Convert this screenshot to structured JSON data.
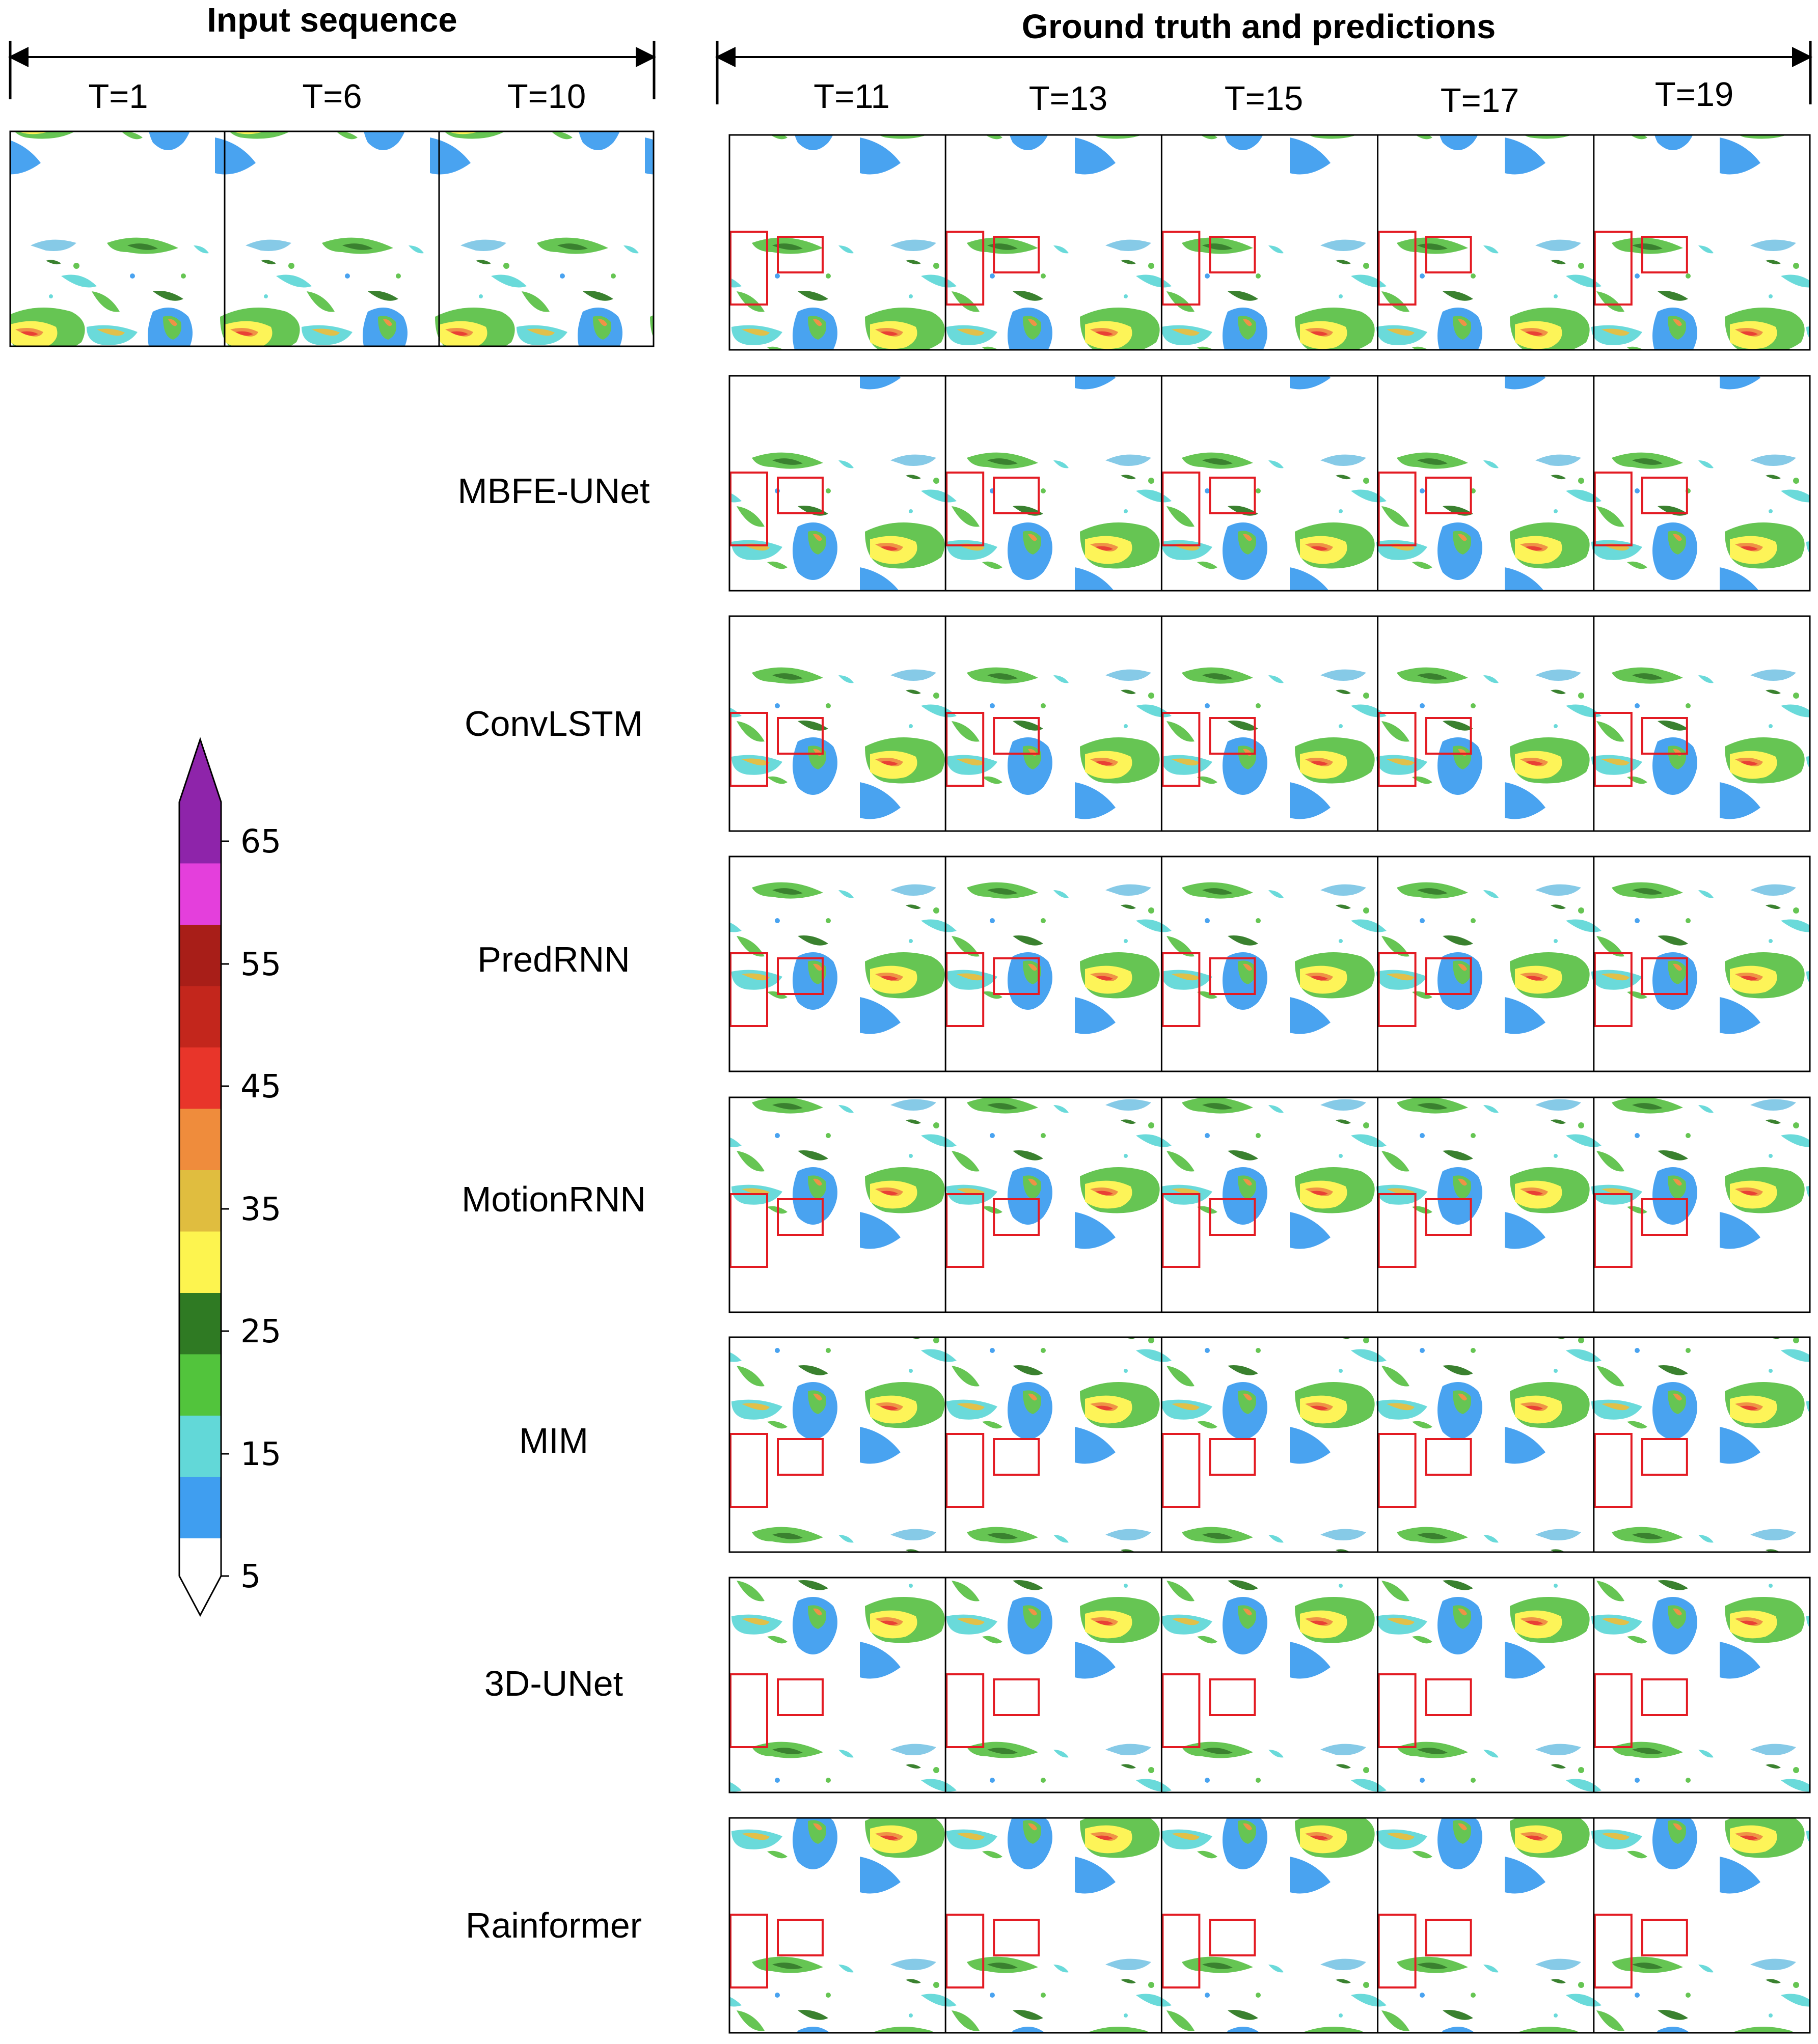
{
  "headers": {
    "input": "Input sequence",
    "output": "Ground truth and predictions"
  },
  "input_times": [
    "T=1",
    "T=6",
    "T=10"
  ],
  "output_times": [
    "T=11",
    "T=13",
    "T=15",
    "T=17",
    "T=19"
  ],
  "models": [
    "MBFE-UNet",
    "ConvLSTM",
    "PredRNN",
    "MotionRNN",
    "MIM",
    "3D-UNet",
    "Rainformer"
  ],
  "colorbar": {
    "tick_labels": [
      "65",
      "55",
      "45",
      "35",
      "25",
      "15",
      "5"
    ],
    "bands_top_to_bottom": [
      "#8e24aa",
      "#e43fdc",
      "#a81e18",
      "#c3261c",
      "#e8352a",
      "#ef8c3c",
      "#e0bd3f",
      "#fdf44f",
      "#2f7a23",
      "#52c43c",
      "#62d8d8",
      "#3f9ef0"
    ],
    "under_color": "#ffffff",
    "over_color": "#8e24aa"
  },
  "highlight_color": "#e31b23"
}
